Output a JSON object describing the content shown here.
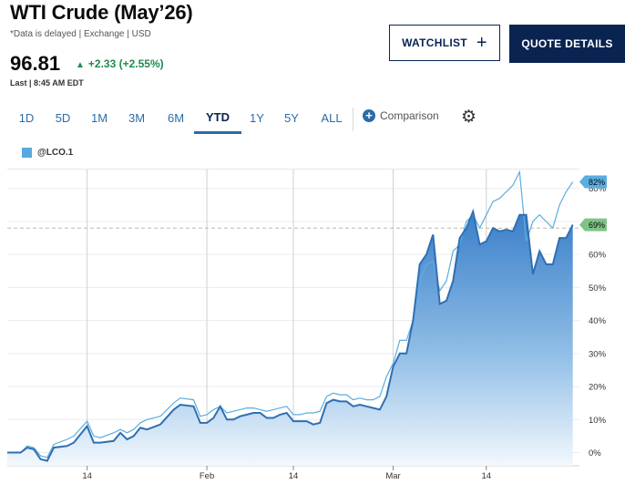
{
  "header": {
    "title": "WTI Crude (May’26)",
    "subtitle": "*Data is delayed | Exchange | USD",
    "price": "96.81",
    "change_arrow": "▲",
    "change": "+2.33 (+2.55%)",
    "last_update": "Last | 8:45 AM EDT"
  },
  "actions": {
    "watchlist_label": "WATCHLIST",
    "watchlist_icon": "plus-icon",
    "quote_details_label": "QUOTE DETAILS"
  },
  "ranges": [
    {
      "label": "1D",
      "active": false
    },
    {
      "label": "5D",
      "active": false
    },
    {
      "label": "1M",
      "active": false
    },
    {
      "label": "3M",
      "active": false
    },
    {
      "label": "6M",
      "active": false
    },
    {
      "label": "YTD",
      "active": true
    },
    {
      "label": "1Y",
      "active": false
    },
    {
      "label": "5Y",
      "active": false
    },
    {
      "label": "ALL",
      "active": false
    }
  ],
  "comparison_label": "Comparison",
  "settings_icon": "gear-icon",
  "legend_label": "@LCO.1",
  "colors": {
    "accent": "#2b6ca8",
    "navy": "#0a2452",
    "positive": "#1f8a4f",
    "wti_line": "#2f6fb3",
    "comparison_line": "#5aaee0",
    "flag_wti": "#7fc486",
    "flag_comparison": "#5aaee0"
  },
  "chart_data": {
    "type": "area",
    "y_ticks": [
      "0%",
      "10%",
      "20%",
      "30%",
      "40%",
      "50%",
      "60%",
      "70%",
      "80%"
    ],
    "ylim": [
      -4,
      86
    ],
    "x_ticks": [
      {
        "label": "14",
        "day": 13
      },
      {
        "label": "Feb",
        "day": 31
      },
      {
        "label": "14",
        "day": 44
      },
      {
        "label": "Mar",
        "day": 59
      },
      {
        "label": "14",
        "day": 73
      }
    ],
    "xlim": [
      1,
      87
    ],
    "reference_line_value": 68,
    "series": [
      {
        "name": "",
        "style": "filled-area",
        "last_label": "69%",
        "points": [
          [
            1,
            0
          ],
          [
            3,
            0
          ],
          [
            4,
            1.5
          ],
          [
            5,
            1
          ],
          [
            6,
            -2
          ],
          [
            7,
            -2.5
          ],
          [
            8,
            1.5
          ],
          [
            10,
            2
          ],
          [
            11,
            3
          ],
          [
            13,
            8
          ],
          [
            14,
            3
          ],
          [
            15,
            3
          ],
          [
            17,
            3.5
          ],
          [
            18,
            6
          ],
          [
            19,
            4
          ],
          [
            20,
            5
          ],
          [
            21,
            7.5
          ],
          [
            22,
            7
          ],
          [
            24,
            8.5
          ],
          [
            26,
            13
          ],
          [
            27,
            14.5
          ],
          [
            29,
            14
          ],
          [
            30,
            9
          ],
          [
            31,
            9
          ],
          [
            32,
            10.5
          ],
          [
            33,
            14
          ],
          [
            34,
            10
          ],
          [
            35,
            10
          ],
          [
            36,
            11
          ],
          [
            37,
            11.5
          ],
          [
            38,
            12
          ],
          [
            39,
            12
          ],
          [
            40,
            10.5
          ],
          [
            41,
            10.5
          ],
          [
            42,
            11.5
          ],
          [
            43,
            12
          ],
          [
            44,
            9.5
          ],
          [
            45,
            9.5
          ],
          [
            46,
            9.5
          ],
          [
            47,
            8.5
          ],
          [
            48,
            9
          ],
          [
            49,
            15
          ],
          [
            50,
            16
          ],
          [
            51,
            15.5
          ],
          [
            52,
            15.5
          ],
          [
            53,
            14
          ],
          [
            54,
            14.5
          ],
          [
            55,
            14
          ],
          [
            56,
            13.5
          ],
          [
            57,
            13
          ],
          [
            58,
            17
          ],
          [
            59,
            26
          ],
          [
            60,
            30
          ],
          [
            61,
            30
          ],
          [
            62,
            40
          ],
          [
            63,
            57
          ],
          [
            64,
            60
          ],
          [
            65,
            66
          ],
          [
            66,
            45
          ],
          [
            67,
            46
          ],
          [
            68,
            52
          ],
          [
            69,
            65
          ],
          [
            70,
            68
          ],
          [
            71,
            73
          ],
          [
            72,
            63
          ],
          [
            73,
            64
          ],
          [
            74,
            68
          ],
          [
            75,
            67
          ],
          [
            76,
            67.5
          ],
          [
            77,
            67
          ],
          [
            78,
            72
          ],
          [
            79,
            72
          ],
          [
            80,
            54
          ],
          [
            81,
            61
          ],
          [
            82,
            57
          ],
          [
            83,
            57
          ],
          [
            84,
            65
          ],
          [
            85,
            65
          ],
          [
            86,
            69
          ]
        ]
      },
      {
        "name": "@LCO.1",
        "style": "line",
        "last_label": "82%",
        "points": [
          [
            1,
            0
          ],
          [
            3,
            0
          ],
          [
            4,
            2
          ],
          [
            5,
            1.5
          ],
          [
            6,
            -1
          ],
          [
            7,
            -1.5
          ],
          [
            8,
            2.5
          ],
          [
            10,
            4
          ],
          [
            11,
            5
          ],
          [
            13,
            9.5
          ],
          [
            14,
            5
          ],
          [
            15,
            4.5
          ],
          [
            17,
            6
          ],
          [
            18,
            7
          ],
          [
            19,
            6
          ],
          [
            20,
            7
          ],
          [
            21,
            9
          ],
          [
            22,
            10
          ],
          [
            24,
            11
          ],
          [
            26,
            15
          ],
          [
            27,
            16.5
          ],
          [
            29,
            16
          ],
          [
            30,
            11
          ],
          [
            31,
            11.5
          ],
          [
            32,
            13
          ],
          [
            33,
            14
          ],
          [
            34,
            12
          ],
          [
            35,
            12.5
          ],
          [
            36,
            13
          ],
          [
            37,
            13.5
          ],
          [
            38,
            13.5
          ],
          [
            39,
            13
          ],
          [
            40,
            12.5
          ],
          [
            41,
            13
          ],
          [
            42,
            13.5
          ],
          [
            43,
            14
          ],
          [
            44,
            11.5
          ],
          [
            45,
            11.5
          ],
          [
            46,
            12
          ],
          [
            47,
            12
          ],
          [
            48,
            12.5
          ],
          [
            49,
            17
          ],
          [
            50,
            18
          ],
          [
            51,
            17.5
          ],
          [
            52,
            17.5
          ],
          [
            53,
            16
          ],
          [
            54,
            16.5
          ],
          [
            55,
            16
          ],
          [
            56,
            16
          ],
          [
            57,
            17
          ],
          [
            58,
            23
          ],
          [
            59,
            27
          ],
          [
            60,
            34
          ],
          [
            61,
            34
          ],
          [
            62,
            40
          ],
          [
            63,
            52
          ],
          [
            64,
            57
          ],
          [
            65,
            58
          ],
          [
            66,
            49
          ],
          [
            67,
            52
          ],
          [
            68,
            61
          ],
          [
            69,
            63
          ],
          [
            70,
            70
          ],
          [
            71,
            72
          ],
          [
            72,
            68
          ],
          [
            73,
            72
          ],
          [
            74,
            76
          ],
          [
            75,
            77
          ],
          [
            76,
            79
          ],
          [
            77,
            81
          ],
          [
            78,
            85
          ],
          [
            79,
            64
          ],
          [
            80,
            70
          ],
          [
            81,
            72
          ],
          [
            82,
            70
          ],
          [
            83,
            68
          ],
          [
            84,
            75
          ],
          [
            85,
            79
          ],
          [
            86,
            82
          ]
        ]
      }
    ]
  }
}
